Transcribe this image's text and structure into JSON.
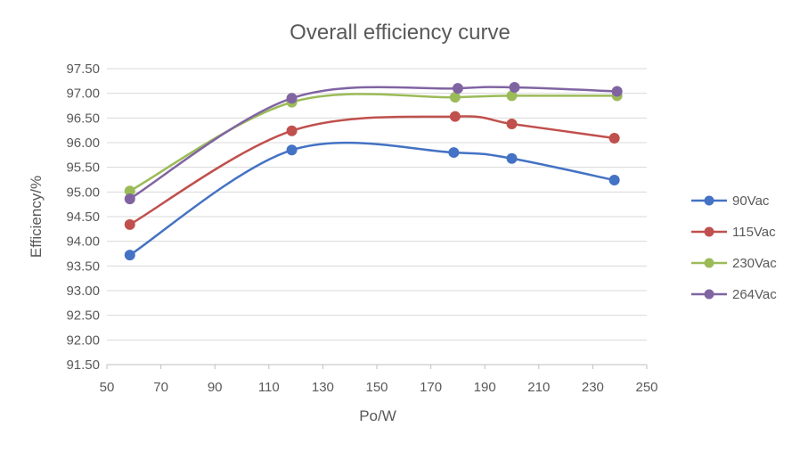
{
  "chart_data": {
    "type": "line",
    "title": "Overall efficiency curve",
    "xlabel": "Po/W",
    "ylabel": "Efficiency/%",
    "xlim": [
      50,
      250
    ],
    "ylim": [
      91.5,
      97.5
    ],
    "x_ticks": [
      "50",
      "70",
      "90",
      "110",
      "130",
      "150",
      "170",
      "190",
      "210",
      "230",
      "250"
    ],
    "y_ticks": [
      "91.50",
      "92.00",
      "92.50",
      "93.00",
      "93.50",
      "94.00",
      "94.50",
      "95.00",
      "95.50",
      "96.00",
      "96.50",
      "97.00",
      "97.50"
    ],
    "grid": "horizontal",
    "legend_position": "right",
    "smooth": true,
    "series": [
      {
        "name": "90Vac",
        "color": "#4472c4",
        "points": [
          [
            58.5,
            93.72
          ],
          [
            118.5,
            95.85
          ],
          [
            178.5,
            95.8
          ],
          [
            200,
            95.68
          ],
          [
            238,
            95.24
          ]
        ]
      },
      {
        "name": "115Vac",
        "color": "#c0504d",
        "points": [
          [
            58.5,
            94.34
          ],
          [
            118.5,
            96.24
          ],
          [
            179,
            96.53
          ],
          [
            200,
            96.38
          ],
          [
            238,
            96.09
          ]
        ]
      },
      {
        "name": "230Vac",
        "color": "#9bbb59",
        "points": [
          [
            58.5,
            95.02
          ],
          [
            118.5,
            96.82
          ],
          [
            179,
            96.92
          ],
          [
            200,
            96.95
          ],
          [
            239,
            96.95
          ]
        ]
      },
      {
        "name": "264Vac",
        "color": "#8064a2",
        "points": [
          [
            58.5,
            94.86
          ],
          [
            118.5,
            96.9
          ],
          [
            180,
            97.1
          ],
          [
            201,
            97.12
          ],
          [
            239,
            97.04
          ]
        ]
      }
    ]
  }
}
